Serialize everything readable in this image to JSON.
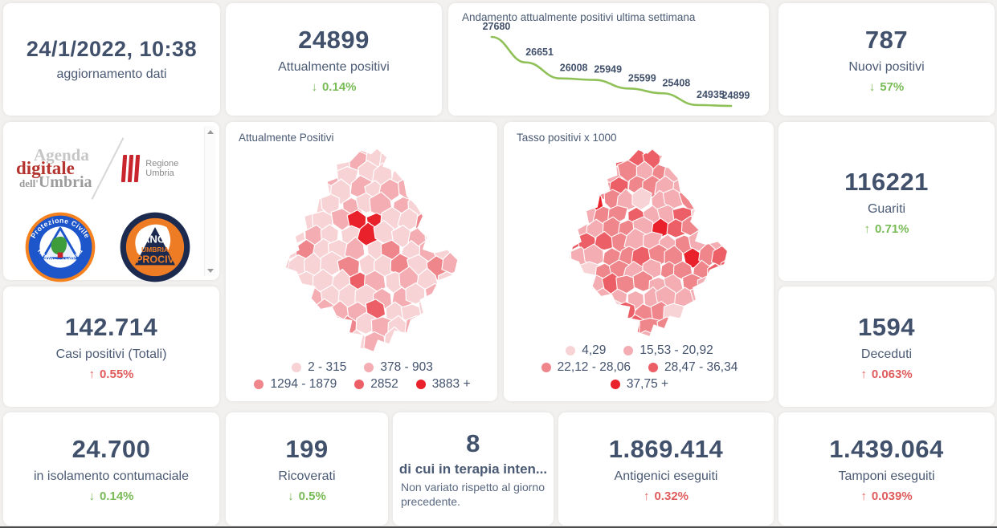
{
  "colors": {
    "page_background": "#f2f1ef",
    "card_background": "#ffffff",
    "number_text": "#41506b",
    "label_text": "#4b5a74",
    "positive_green": "#78bb57",
    "negative_red": "#e05c5c",
    "trend_line_green": "#8fc158",
    "map_palette": [
      "#f8d3d6",
      "#f4aeb3",
      "#ef868c",
      "#ec5f67",
      "#e8212b"
    ]
  },
  "stats": {
    "update": {
      "value": "24/1/2022, 10:38",
      "label": "aggiornamento dati"
    },
    "attualmente": {
      "value": "24899",
      "label": "Attualmente positivi",
      "arrow": "↓",
      "delta": "0.14%",
      "delta_color": "green"
    },
    "nuovi": {
      "value": "787",
      "label": "Nuovi positivi",
      "arrow": "↓",
      "delta": "57%",
      "delta_color": "green"
    },
    "guariti": {
      "value": "116221",
      "label": "Guariti",
      "arrow": "↑",
      "delta": "0.71%",
      "delta_color": "green"
    },
    "casi": {
      "value": "142.714",
      "label": "Casi positivi (Totali)",
      "arrow": "↑",
      "delta": "0.55%",
      "delta_color": "red"
    },
    "deceduti": {
      "value": "1594",
      "label": "Deceduti",
      "arrow": "↑",
      "delta": "0.063%",
      "delta_color": "red"
    },
    "isolamento": {
      "value": "24.700",
      "label": "in isolamento contumaciale",
      "arrow": "↓",
      "delta": "0.14%",
      "delta_color": "green"
    },
    "ricoverati": {
      "value": "199",
      "label": "Ricoverati",
      "arrow": "↓",
      "delta": "0.5%",
      "delta_color": "green"
    },
    "terapia": {
      "value": "8",
      "label": "di cui in terapia inten...",
      "note": "Non variato rispetto al giorno precedente."
    },
    "antigenici": {
      "value": "1.869.414",
      "label": "Antigenici eseguiti",
      "arrow": "↑",
      "delta": "0.32%",
      "delta_color": "red"
    },
    "tamponi": {
      "value": "1.439.064",
      "label": "Tamponi eseguiti",
      "arrow": "↑",
      "delta": "0.039%",
      "delta_color": "red"
    }
  },
  "chart_data": {
    "type": "line",
    "title": "Andamento attualmente positivi ultima settimana",
    "x": [
      1,
      2,
      3,
      4,
      5,
      6,
      7,
      8
    ],
    "values": [
      27680,
      26651,
      26008,
      25949,
      25599,
      25408,
      24935,
      24899
    ],
    "data_labels": [
      "27680",
      "26651",
      "26008",
      "25949",
      "25599",
      "25408",
      "24935",
      "24899"
    ],
    "line_color": "#8fc158",
    "label_color": "#41506b",
    "grid": false,
    "axes_visible": false
  },
  "maps": [
    {
      "title": "Attualmente Positivi",
      "legend": [
        {
          "label": "2 - 315",
          "color": "#f8d3d6"
        },
        {
          "label": "378 - 903",
          "color": "#f4aeb3"
        },
        {
          "label": "1294 - 1879",
          "color": "#ef868c"
        },
        {
          "label": "2852",
          "color": "#ec5f67"
        },
        {
          "label": "3883 +",
          "color": "#e8212b"
        }
      ],
      "legend_rows": [
        2,
        3
      ]
    },
    {
      "title": "Tasso positivi x 1000",
      "legend": [
        {
          "label": "4,29",
          "color": "#f8d3d6"
        },
        {
          "label": "15,53 - 20,92",
          "color": "#f4aeb3"
        },
        {
          "label": "22,12 - 28,06",
          "color": "#ef868c"
        },
        {
          "label": "28,47 - 36,34",
          "color": "#ec5f67"
        },
        {
          "label": "37,75 +",
          "color": "#e8212b"
        }
      ],
      "legend_rows": [
        2,
        2,
        1
      ]
    }
  ],
  "logos": {
    "agenda_line1": "Agenda",
    "agenda_line2": "digitale",
    "agenda_line3_small": "dell'",
    "agenda_line3": "Umbria",
    "regione_label": "Regione Umbria",
    "protezione_top": "Protezione Civile",
    "protezione_bottom": "Regione Umbria",
    "anci_line1": "ANCI",
    "anci_line2": "UMBRIA",
    "anci_line3": "PROCIV"
  }
}
